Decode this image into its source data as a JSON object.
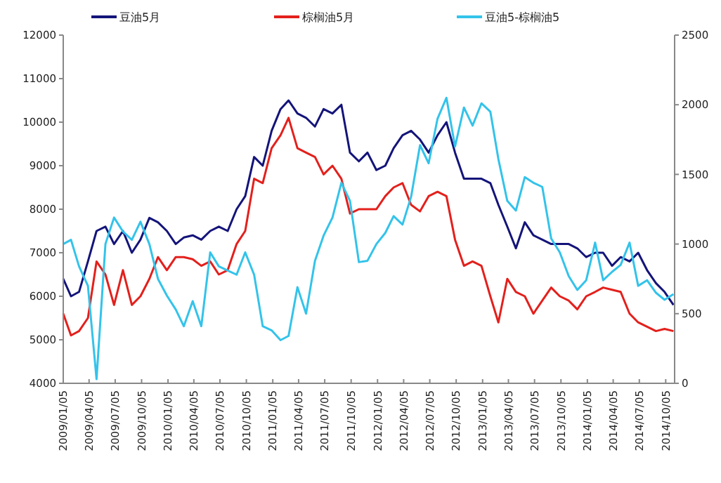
{
  "chart_data": {
    "type": "line",
    "legend": "top",
    "grid": false,
    "line_style": "solid",
    "x": [
      "2009-01-05",
      "2009-02",
      "2009-03",
      "2009-04",
      "2009-05",
      "2009-06",
      "2009-07",
      "2009-08",
      "2009-09",
      "2009-10",
      "2009-11",
      "2009-12",
      "2010-01",
      "2010-02",
      "2010-03",
      "2010-04",
      "2010-05",
      "2010-06",
      "2010-07",
      "2010-08",
      "2010-09",
      "2010-10",
      "2010-11",
      "2010-12",
      "2011-01",
      "2011-02",
      "2011-03",
      "2011-04",
      "2011-05",
      "2011-06",
      "2011-07",
      "2011-08",
      "2011-09",
      "2011-10",
      "2011-11",
      "2011-12",
      "2012-01",
      "2012-02",
      "2012-03",
      "2012-04",
      "2012-05",
      "2012-06",
      "2012-07",
      "2012-08",
      "2012-09",
      "2012-10",
      "2012-11",
      "2012-12",
      "2013-01",
      "2013-02",
      "2013-03",
      "2013-04",
      "2013-05",
      "2013-06",
      "2013-07",
      "2013-08",
      "2013-09",
      "2013-10",
      "2013-11",
      "2013-12",
      "2014-01",
      "2014-02",
      "2014-03",
      "2014-04",
      "2014-05",
      "2014-06",
      "2014-07",
      "2014-08",
      "2014-09",
      "2014-10",
      "2014-11"
    ],
    "xlim": [
      "2009-01-05",
      "2014-11-05"
    ],
    "xticks": [
      {
        "value": "2009-01-05",
        "label": "2009/01/05"
      },
      {
        "value": "2009-04-05",
        "label": "2009/04/05"
      },
      {
        "value": "2009-07-05",
        "label": "2009/07/05"
      },
      {
        "value": "2009-10-05",
        "label": "2009/10/05"
      },
      {
        "value": "2010-01-05",
        "label": "2010/01/05"
      },
      {
        "value": "2010-04-05",
        "label": "2010/04/05"
      },
      {
        "value": "2010-07-05",
        "label": "2010/07/05"
      },
      {
        "value": "2010-10-05",
        "label": "2010/10/05"
      },
      {
        "value": "2011-01-05",
        "label": "2011/01/05"
      },
      {
        "value": "2011-04-05",
        "label": "2011/04/05"
      },
      {
        "value": "2011-07-05",
        "label": "2011/07/05"
      },
      {
        "value": "2011-10-05",
        "label": "2011/10/05"
      },
      {
        "value": "2012-01-05",
        "label": "2012/01/05"
      },
      {
        "value": "2012-04-05",
        "label": "2012/04/05"
      },
      {
        "value": "2012-07-05",
        "label": "2012/07/05"
      },
      {
        "value": "2012-10-05",
        "label": "2012/10/05"
      },
      {
        "value": "2013-01-05",
        "label": "2013/01/05"
      },
      {
        "value": "2013-04-05",
        "label": "2013/04/05"
      },
      {
        "value": "2013-07-05",
        "label": "2013/07/05"
      },
      {
        "value": "2013-10-05",
        "label": "2013/10/05"
      },
      {
        "value": "2014-01-05",
        "label": "2014/01/05"
      },
      {
        "value": "2014-04-05",
        "label": "2014/04/05"
      },
      {
        "value": "2014-07-05",
        "label": "2014/07/05"
      },
      {
        "value": "2014-10-05",
        "label": "2014/10/05"
      }
    ],
    "ylim": [
      4000,
      12000
    ],
    "yticks": [
      4000,
      5000,
      6000,
      7000,
      8000,
      9000,
      10000,
      11000,
      12000
    ],
    "y2lim": [
      0,
      2500
    ],
    "y2ticks": [
      0,
      500,
      1000,
      1500,
      2000,
      2500
    ],
    "series": [
      {
        "name": "豆油5月",
        "color": "#14147a",
        "values": [
          6400,
          6000,
          6100,
          6800,
          7500,
          7600,
          7200,
          7500,
          7000,
          7300,
          7800,
          7700,
          7500,
          7200,
          7350,
          7400,
          7300,
          7500,
          7600,
          7500,
          8000,
          8300,
          9200,
          9000,
          9800,
          10300,
          10500,
          10200,
          10100,
          9900,
          10300,
          10200,
          10400,
          9300,
          9100,
          9300,
          8900,
          9000,
          9400,
          9700,
          9800,
          9600,
          9300,
          9700,
          10000,
          9300,
          8700,
          8700,
          8700,
          8600,
          8100,
          7600,
          7100,
          7700,
          7400,
          7300,
          7200,
          7200,
          7200,
          7100,
          6900,
          7000,
          7000,
          6700,
          6900,
          6800,
          7000,
          6600,
          6300,
          6100,
          5800
        ]
      },
      {
        "name": "棕榈油5月",
        "color": "#e3201c",
        "values": [
          5600,
          5100,
          5200,
          5500,
          6800,
          6500,
          5800,
          6600,
          5800,
          6000,
          6400,
          6900,
          6600,
          6900,
          6900,
          6850,
          6700,
          6800,
          6500,
          6600,
          7200,
          7500,
          8700,
          8600,
          9400,
          9700,
          10100,
          9400,
          9300,
          9200,
          8800,
          9000,
          8700,
          7900,
          8000,
          8000,
          8000,
          8300,
          8500,
          8600,
          8100,
          7950,
          8300,
          8400,
          8300,
          7300,
          6700,
          6800,
          6700,
          6000,
          5400,
          6400,
          6100,
          6000,
          5600,
          5900,
          6200,
          6000,
          5900,
          5700,
          6000,
          6100,
          6200,
          6150,
          6100,
          5600,
          5400,
          5300,
          5200,
          5250,
          5200
        ]
      },
      {
        "name": "豆油5-棕榈油5",
        "color": "#33c3ea",
        "axis": "y2",
        "values": [
          1000,
          1030,
          840,
          700,
          30,
          1000,
          1190,
          1090,
          1030,
          1160,
          1000,
          750,
          630,
          530,
          410,
          590,
          410,
          940,
          840,
          810,
          780,
          940,
          780,
          410,
          380,
          310,
          340,
          690,
          500,
          880,
          1060,
          1190,
          1440,
          1310,
          870,
          880,
          1000,
          1080,
          1200,
          1140,
          1340,
          1710,
          1580,
          1900,
          2050,
          1700,
          1980,
          1850,
          2010,
          1950,
          1610,
          1310,
          1240,
          1480,
          1440,
          1410,
          1040,
          940,
          770,
          670,
          740,
          1010,
          740,
          800,
          850,
          1010,
          700,
          740,
          650,
          600,
          640
        ]
      }
    ]
  }
}
